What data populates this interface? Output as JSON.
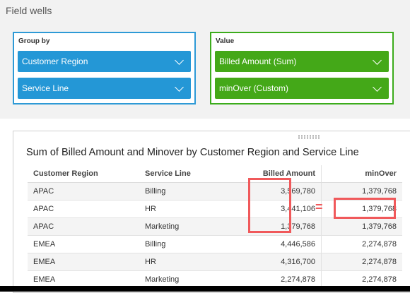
{
  "field_wells": {
    "title": "Field wells",
    "group_by": {
      "label": "Group by",
      "items": [
        "Customer Region",
        "Service Line"
      ]
    },
    "value": {
      "label": "Value",
      "items": [
        "Billed Amount (Sum)",
        "minOver (Custom)"
      ]
    }
  },
  "visual": {
    "title": "Sum of Billed Amount and Minover by Customer Region and Service Line",
    "columns": [
      "Customer Region",
      "Service Line",
      "Billed Amount",
      "minOver"
    ],
    "rows": [
      [
        "APAC",
        "Billing",
        "3,569,780",
        "1,379,768"
      ],
      [
        "APAC",
        "HR",
        "3,441,106",
        "1,379,768"
      ],
      [
        "APAC",
        "Marketing",
        "1,379,768",
        "1,379,768"
      ],
      [
        "EMEA",
        "Billing",
        "4,446,586",
        "2,274,878"
      ],
      [
        "EMEA",
        "HR",
        "4,316,700",
        "2,274,878"
      ],
      [
        "EMEA",
        "Marketing",
        "2,274,878",
        "2,274,878"
      ]
    ]
  },
  "annotation": {
    "equals_sign": "=",
    "highlight_color": "#f0595b"
  },
  "colors": {
    "group_by": "#2497d6",
    "value": "#44a818"
  }
}
